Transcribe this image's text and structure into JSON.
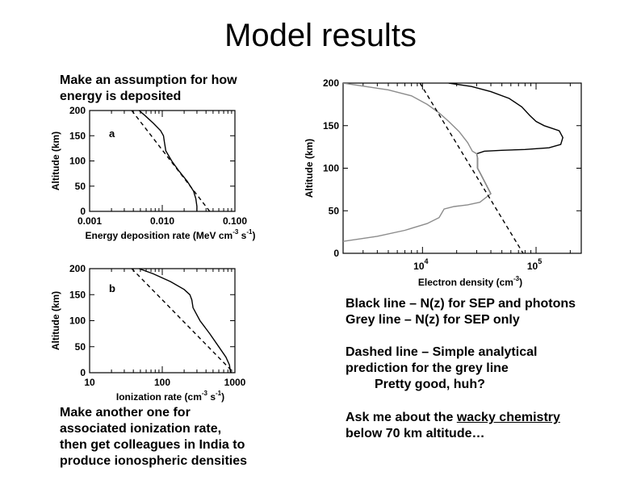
{
  "slide": {
    "title": "Model results",
    "note_top_left": "Make an assumption for how\nenergy is deposited",
    "note_bottom_left": "Make another one for\nassociated ionization rate,\nthen get colleagues in India to\nproduce ionospheric densities",
    "legend_black": "Black line – N(z) for SEP and photons",
    "legend_grey": "Grey line – N(z) for SEP only",
    "dashed_line_1": "Dashed line – Simple analytical",
    "dashed_line_2": "prediction for the grey line",
    "dashed_line_3": "Pretty good, huh?",
    "ask_prefix": "Ask me about the ",
    "ask_link": "wacky chemistry",
    "ask_suffix": "below 70 km altitude…"
  },
  "chart_data": [
    {
      "type": "line",
      "panel_label": "a",
      "xlabel_main": "Energy deposition rate (MeV cm",
      "xlabel_sup1": "-3",
      "xlabel_mid": " s",
      "xlabel_sup2": "-1",
      "xlabel_end": ")",
      "ylabel": "Altitude (km)",
      "x_scale": "log",
      "xlim": [
        0.001,
        0.1
      ],
      "ylim": [
        0,
        200
      ],
      "x_ticks": [
        0.001,
        0.01,
        0.1
      ],
      "x_tick_labels": [
        "0.001",
        "0.010",
        "0.100"
      ],
      "y_ticks": [
        0,
        50,
        100,
        150,
        200
      ],
      "y_tick_labels": [
        "0",
        "50",
        "100",
        "150",
        "200"
      ],
      "series": [
        {
          "style": "solid",
          "color": "#000000",
          "x": [
            0.0048,
            0.0058,
            0.0075,
            0.0095,
            0.0104,
            0.0107,
            0.0112,
            0.0135,
            0.017,
            0.022,
            0.027,
            0.029,
            0.03,
            0.03
          ],
          "y": [
            200,
            190,
            175,
            160,
            150,
            138,
            120,
            100,
            80,
            60,
            40,
            25,
            10,
            0
          ]
        },
        {
          "style": "dashed",
          "color": "#000000",
          "x": [
            0.0038,
            0.045
          ],
          "y": [
            200,
            0
          ]
        }
      ]
    },
    {
      "type": "line",
      "panel_label": "b",
      "xlabel_main": "Ionization rate (cm",
      "xlabel_sup1": "-3",
      "xlabel_mid": " s",
      "xlabel_sup2": "-1",
      "xlabel_end": ")",
      "ylabel": "Altitude (km)",
      "x_scale": "log",
      "xlim": [
        10,
        1000
      ],
      "ylim": [
        0,
        200
      ],
      "x_ticks": [
        10,
        100,
        1000
      ],
      "x_tick_labels": [
        "10",
        "100",
        "1000"
      ],
      "y_ticks": [
        0,
        50,
        100,
        150,
        200
      ],
      "y_tick_labels": [
        "0",
        "50",
        "100",
        "150",
        "200"
      ],
      "series": [
        {
          "style": "solid",
          "color": "#000000",
          "x": [
            48,
            75,
            130,
            200,
            240,
            255,
            265,
            330,
            450,
            600,
            750,
            840,
            870
          ],
          "y": [
            200,
            190,
            175,
            160,
            150,
            140,
            125,
            100,
            75,
            50,
            30,
            15,
            0
          ]
        },
        {
          "style": "dashed",
          "color": "#000000",
          "x": [
            38,
            960
          ],
          "y": [
            200,
            0
          ]
        }
      ]
    },
    {
      "type": "line",
      "xlabel_main": "Electron density (cm",
      "xlabel_sup1": "-3",
      "xlabel_end": ")",
      "ylabel": "Altitude (km)",
      "x_scale": "log",
      "xlim": [
        2000,
        250000
      ],
      "ylim": [
        0,
        200
      ],
      "x_ticks": [
        10000,
        100000
      ],
      "x_tick_labels_base": [
        "10",
        "10"
      ],
      "x_tick_labels_exp": [
        "4",
        "5"
      ],
      "y_ticks": [
        0,
        50,
        100,
        150,
        200
      ],
      "y_tick_labels": [
        "0",
        "50",
        "100",
        "150",
        "200"
      ],
      "series": [
        {
          "name": "SEP and photons",
          "style": "solid",
          "color": "#000000",
          "x": [
            17000,
            27000,
            40000,
            58000,
            75000,
            88000,
            100000,
            118000,
            160000,
            172000,
            165000,
            130000,
            80000,
            50000,
            35000,
            30000,
            30500,
            30500,
            32000,
            40000
          ],
          "y": [
            200,
            196,
            190,
            182,
            172,
            162,
            155,
            150,
            144,
            136,
            128,
            124,
            122,
            121,
            120,
            117,
            112,
            100,
            95,
            70
          ]
        },
        {
          "name": "SEP only",
          "style": "solid",
          "color": "#8c8c8c",
          "x": [
            2000,
            5000,
            8000,
            11000,
            14000,
            17000,
            21000,
            25000,
            27500,
            30000,
            30500,
            30500,
            32000,
            40000,
            32000,
            25000,
            19000,
            15500,
            14000,
            11000,
            7000,
            4000,
            2000
          ],
          "y": [
            200,
            192,
            185,
            175,
            165,
            155,
            143,
            130,
            120,
            117,
            112,
            100,
            95,
            70,
            60,
            57,
            55,
            52,
            42,
            35,
            27,
            20,
            14
          ]
        },
        {
          "style": "dashed",
          "color": "#000000",
          "x": [
            9500,
            77000
          ],
          "y": [
            200,
            0
          ]
        }
      ]
    }
  ]
}
